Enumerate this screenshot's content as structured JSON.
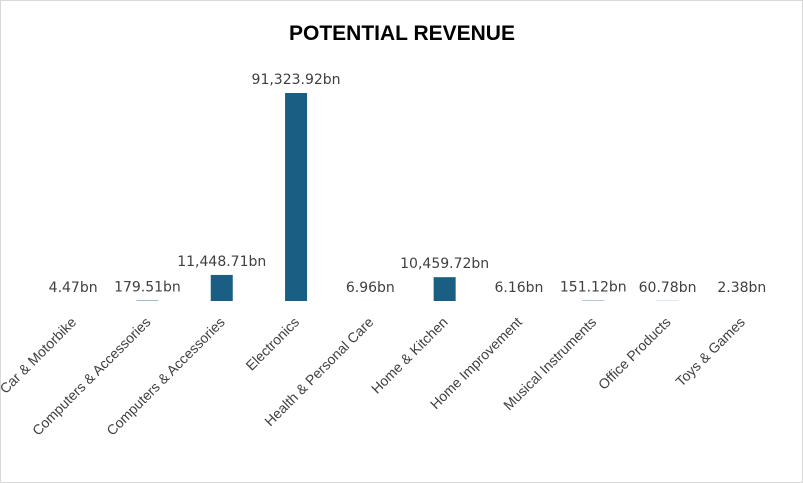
{
  "chart_data": {
    "type": "bar",
    "title": "POTENTIAL REVENUE",
    "xlabel": "",
    "ylabel": "",
    "categories": [
      "Car & Motorbike",
      "Computers & Accessories",
      "Computers & Accessories",
      "Electronics",
      "Health & Personal Care",
      "Home & Kitchen",
      "Home Improvement",
      "Musical Instruments",
      "Office Products",
      "Toys & Games"
    ],
    "values": [
      4.47,
      179.51,
      11448.71,
      91323.92,
      6.96,
      10459.72,
      6.16,
      151.12,
      60.78,
      2.38
    ],
    "value_labels": [
      "4.47bn",
      "179.51bn",
      "11,448.71bn",
      "91,323.92bn",
      "6.96bn",
      "10,459.72bn",
      "6.16bn",
      "151.12bn",
      "60.78bn",
      "2.38bn"
    ],
    "ylim": [
      0,
      91323.92
    ],
    "grid": false,
    "legend": "none",
    "bar_color": "#1a5e83"
  }
}
